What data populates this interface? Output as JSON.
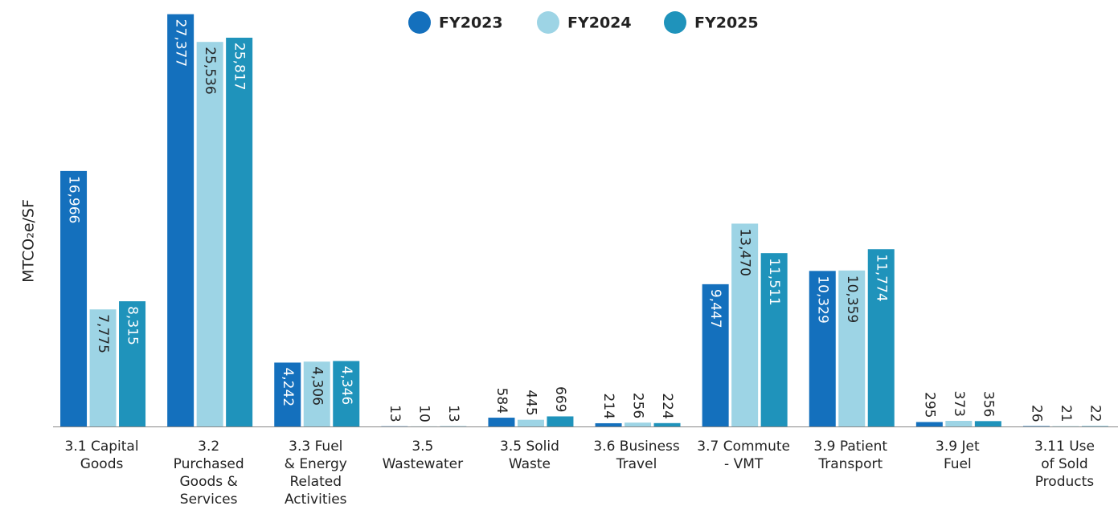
{
  "chart_data": {
    "type": "bar",
    "ylabel": "MTCO₂e/SF",
    "categories": [
      "3.1 Capital\nGoods",
      "3.2\nPurchased\nGoods &\nServices",
      "3.3 Fuel\n& Energy\nRelated\nActivities",
      "3.5\nWastewater",
      "3.5 Solid\nWaste",
      "3.6 Business\nTravel",
      "3.7 Commute\n- VMT",
      "3.9 Patient\nTransport",
      "3.9 Jet\nFuel",
      "3.11 Use\nof Sold\nProducts"
    ],
    "series": [
      {
        "name": "FY2023",
        "color": "#1470bd",
        "values": [
          16966,
          27377,
          4242,
          13,
          584,
          214,
          9447,
          10329,
          295,
          26
        ],
        "value_labels": [
          "16,966",
          "27,377",
          "4,242",
          "13",
          "584",
          "214",
          "9,447",
          "10,329",
          "295",
          "26"
        ]
      },
      {
        "name": "FY2024",
        "color": "#9dd4e5",
        "values": [
          7775,
          25536,
          4306,
          10,
          445,
          256,
          13470,
          10359,
          373,
          21
        ],
        "value_labels": [
          "7,775",
          "25,536",
          "4,306",
          "10",
          "445",
          "256",
          "13,470",
          "10,359",
          "373",
          "21"
        ]
      },
      {
        "name": "FY2025",
        "color": "#1f93bb",
        "values": [
          8315,
          25817,
          4346,
          13,
          669,
          224,
          11511,
          11774,
          356,
          22
        ],
        "value_labels": [
          "8,315",
          "25,817",
          "4,346",
          "13",
          "669",
          "224",
          "11,511",
          "11,774",
          "356",
          "22"
        ]
      }
    ],
    "ylim": [
      0,
      28000
    ]
  }
}
